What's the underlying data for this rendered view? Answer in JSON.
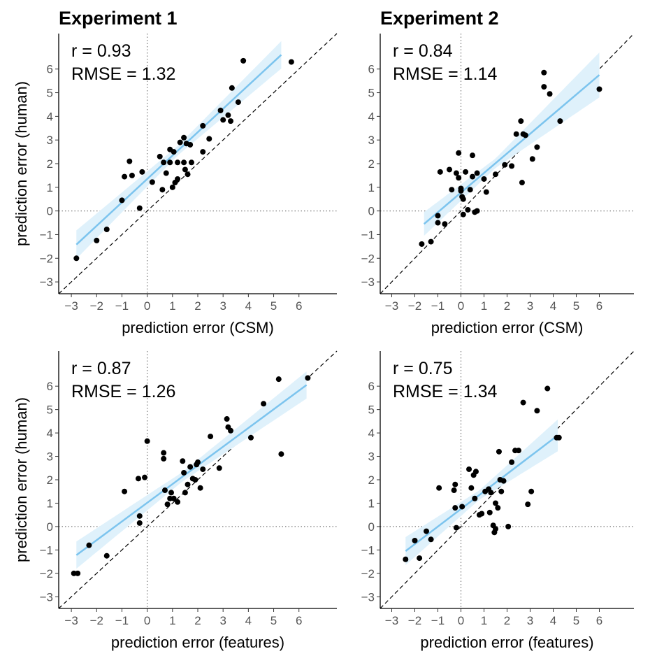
{
  "colors": {
    "fit_line": "#7cc4ee",
    "ci_band": "#dff1fb",
    "point": "#000000",
    "identity_line": "#000000",
    "zero_line": "#7a7a7a"
  },
  "column_titles": [
    "Experiment 1",
    "Experiment 2"
  ],
  "chart_data": [
    {
      "type": "scatter",
      "panel": "top-left",
      "xlabel": "prediction error (CSM)",
      "ylabel": "prediction error (human)",
      "stats": {
        "r": "r = 0.93",
        "rmse": "RMSE = 1.32"
      },
      "xlim": [
        -3.5,
        7.5
      ],
      "ylim": [
        -3.5,
        7.5
      ],
      "xticks": [
        -3,
        -2,
        -1,
        0,
        1,
        2,
        3,
        4,
        5,
        6
      ],
      "yticks": [
        -3,
        -2,
        -1,
        0,
        1,
        2,
        3,
        4,
        5,
        6
      ],
      "fit": {
        "x0": -2.8,
        "y0": -1.42,
        "x1": 5.3,
        "y1": 6.6,
        "ci_x": [
          -2.8,
          1.2,
          5.3
        ],
        "ci_half": [
          0.6,
          0.2,
          0.58
        ]
      },
      "points": [
        [
          -2.8,
          -2.0
        ],
        [
          -2.0,
          -1.25
        ],
        [
          -1.6,
          -0.78
        ],
        [
          -1.0,
          0.45
        ],
        [
          -0.9,
          1.45
        ],
        [
          -0.7,
          2.1
        ],
        [
          -0.6,
          1.5
        ],
        [
          -0.3,
          0.12
        ],
        [
          -0.2,
          1.65
        ],
        [
          0.2,
          1.22
        ],
        [
          0.5,
          2.3
        ],
        [
          0.6,
          0.9
        ],
        [
          0.65,
          2.05
        ],
        [
          0.75,
          1.6
        ],
        [
          0.9,
          2.05
        ],
        [
          0.9,
          2.6
        ],
        [
          1.0,
          1.0
        ],
        [
          1.05,
          2.5
        ],
        [
          1.1,
          1.2
        ],
        [
          1.2,
          1.35
        ],
        [
          1.2,
          2.05
        ],
        [
          1.3,
          2.9
        ],
        [
          1.45,
          2.05
        ],
        [
          1.45,
          3.1
        ],
        [
          1.5,
          1.75
        ],
        [
          1.55,
          2.85
        ],
        [
          1.6,
          1.55
        ],
        [
          1.7,
          2.8
        ],
        [
          1.75,
          2.05
        ],
        [
          2.2,
          3.6
        ],
        [
          2.2,
          2.5
        ],
        [
          2.45,
          3.05
        ],
        [
          2.9,
          4.25
        ],
        [
          3.0,
          3.85
        ],
        [
          3.2,
          4.05
        ],
        [
          3.3,
          3.8
        ],
        [
          3.35,
          5.2
        ],
        [
          3.6,
          4.6
        ],
        [
          3.8,
          6.35
        ],
        [
          5.7,
          6.3
        ]
      ]
    },
    {
      "type": "scatter",
      "panel": "top-right",
      "xlabel": "prediction error (CSM)",
      "ylabel": "",
      "stats": {
        "r": "r = 0.84",
        "rmse": "RMSE = 1.14"
      },
      "xlim": [
        -3.5,
        7.5
      ],
      "ylim": [
        -3.5,
        7.5
      ],
      "xticks": [
        -3,
        -2,
        -1,
        0,
        1,
        2,
        3,
        4,
        5,
        6
      ],
      "yticks": [
        -3,
        -2,
        -1,
        0,
        1,
        2,
        3,
        4,
        5,
        6
      ],
      "fit": {
        "x0": -1.6,
        "y0": -0.55,
        "x1": 6.0,
        "y1": 5.75,
        "ci_x": [
          -1.6,
          1.5,
          6.0
        ],
        "ci_half": [
          0.5,
          0.2,
          0.95
        ]
      },
      "points": [
        [
          -1.7,
          -1.4
        ],
        [
          -1.3,
          -1.3
        ],
        [
          -1.0,
          -0.2
        ],
        [
          -1.0,
          -0.5
        ],
        [
          -0.9,
          1.65
        ],
        [
          -0.7,
          -0.55
        ],
        [
          -0.5,
          1.75
        ],
        [
          -0.4,
          0.9
        ],
        [
          -0.2,
          1.6
        ],
        [
          -0.1,
          2.45
        ],
        [
          -0.1,
          1.4
        ],
        [
          0.0,
          0.95
        ],
        [
          0.0,
          0.85
        ],
        [
          0.05,
          0.6
        ],
        [
          0.1,
          0.5
        ],
        [
          0.1,
          -0.15
        ],
        [
          0.2,
          1.65
        ],
        [
          0.3,
          0.05
        ],
        [
          0.4,
          0.9
        ],
        [
          0.5,
          2.35
        ],
        [
          0.5,
          1.45
        ],
        [
          0.6,
          -0.05
        ],
        [
          0.7,
          0.0
        ],
        [
          0.7,
          1.6
        ],
        [
          1.0,
          1.35
        ],
        [
          1.1,
          0.8
        ],
        [
          1.5,
          1.55
        ],
        [
          1.9,
          1.95
        ],
        [
          2.2,
          1.9
        ],
        [
          2.4,
          3.25
        ],
        [
          2.6,
          3.8
        ],
        [
          2.65,
          1.2
        ],
        [
          2.7,
          3.25
        ],
        [
          2.8,
          3.2
        ],
        [
          3.1,
          2.2
        ],
        [
          3.3,
          2.7
        ],
        [
          3.6,
          5.25
        ],
        [
          3.6,
          5.85
        ],
        [
          3.85,
          4.95
        ],
        [
          4.3,
          3.8
        ],
        [
          6.0,
          5.15
        ]
      ]
    },
    {
      "type": "scatter",
      "panel": "bottom-left",
      "xlabel": "prediction error (features)",
      "ylabel": "prediction error (human)",
      "stats": {
        "r": "r = 0.87",
        "rmse": "RMSE = 1.26"
      },
      "xlim": [
        -3.5,
        7.5
      ],
      "ylim": [
        -3.5,
        7.5
      ],
      "xticks": [
        -3,
        -2,
        -1,
        0,
        1,
        2,
        3,
        4,
        5,
        6
      ],
      "yticks": [
        -3,
        -2,
        -1,
        0,
        1,
        2,
        3,
        4,
        5,
        6
      ],
      "fit": {
        "x0": -2.8,
        "y0": -1.22,
        "x1": 6.3,
        "y1": 6.05,
        "ci_x": [
          -2.8,
          1.4,
          6.3
        ],
        "ci_half": [
          0.58,
          0.2,
          0.58
        ]
      },
      "points": [
        [
          -2.9,
          -2.0
        ],
        [
          -2.75,
          -2.0
        ],
        [
          -2.3,
          -0.8
        ],
        [
          -1.6,
          -1.25
        ],
        [
          -0.9,
          1.5
        ],
        [
          -0.35,
          2.05
        ],
        [
          -0.3,
          0.45
        ],
        [
          -0.3,
          0.15
        ],
        [
          -0.1,
          2.1
        ],
        [
          0.0,
          3.65
        ],
        [
          0.65,
          3.15
        ],
        [
          0.65,
          2.9
        ],
        [
          0.7,
          1.55
        ],
        [
          0.8,
          0.95
        ],
        [
          0.9,
          1.2
        ],
        [
          0.95,
          1.45
        ],
        [
          1.05,
          1.2
        ],
        [
          1.2,
          1.05
        ],
        [
          1.4,
          2.8
        ],
        [
          1.45,
          2.3
        ],
        [
          1.5,
          1.45
        ],
        [
          1.6,
          1.8
        ],
        [
          1.7,
          2.55
        ],
        [
          1.8,
          2.05
        ],
        [
          1.9,
          2.0
        ],
        [
          1.95,
          2.65
        ],
        [
          2.0,
          2.75
        ],
        [
          2.1,
          1.65
        ],
        [
          2.2,
          2.45
        ],
        [
          2.5,
          3.85
        ],
        [
          2.85,
          2.5
        ],
        [
          3.15,
          4.6
        ],
        [
          3.2,
          4.25
        ],
        [
          3.3,
          4.1
        ],
        [
          4.1,
          3.8
        ],
        [
          4.6,
          5.25
        ],
        [
          5.2,
          6.3
        ],
        [
          5.3,
          3.1
        ],
        [
          6.35,
          6.35
        ]
      ]
    },
    {
      "type": "scatter",
      "panel": "bottom-right",
      "xlabel": "prediction error (features)",
      "ylabel": "",
      "stats": {
        "r": "r = 0.75",
        "rmse": "RMSE = 1.34"
      },
      "xlim": [
        -3.5,
        7.5
      ],
      "ylim": [
        -3.5,
        7.5
      ],
      "xticks": [
        -3,
        -2,
        -1,
        0,
        1,
        2,
        3,
        4,
        5,
        6
      ],
      "yticks": [
        -3,
        -2,
        -1,
        0,
        1,
        2,
        3,
        4,
        5,
        6
      ],
      "fit": {
        "x0": -2.4,
        "y0": -1.05,
        "x1": 4.2,
        "y1": 3.9,
        "ci_x": [
          -2.4,
          0.8,
          4.2
        ],
        "ci_half": [
          0.6,
          0.2,
          0.68
        ]
      },
      "points": [
        [
          -2.4,
          -1.4
        ],
        [
          -2.0,
          -0.6
        ],
        [
          -1.8,
          -1.35
        ],
        [
          -1.5,
          -0.2
        ],
        [
          -1.3,
          -0.55
        ],
        [
          -0.95,
          1.65
        ],
        [
          -0.3,
          1.55
        ],
        [
          -0.25,
          1.8
        ],
        [
          -0.25,
          0.8
        ],
        [
          -0.2,
          -0.05
        ],
        [
          0.05,
          0.85
        ],
        [
          0.35,
          2.45
        ],
        [
          0.45,
          1.65
        ],
        [
          0.55,
          2.2
        ],
        [
          0.6,
          1.2
        ],
        [
          0.65,
          2.35
        ],
        [
          0.8,
          0.5
        ],
        [
          0.9,
          0.55
        ],
        [
          1.05,
          1.5
        ],
        [
          1.2,
          1.6
        ],
        [
          1.25,
          0.6
        ],
        [
          1.3,
          1.45
        ],
        [
          1.4,
          0.05
        ],
        [
          1.45,
          -0.25
        ],
        [
          1.5,
          1.0
        ],
        [
          1.5,
          -0.1
        ],
        [
          1.6,
          0.8
        ],
        [
          1.65,
          3.2
        ],
        [
          1.7,
          2.0
        ],
        [
          1.75,
          1.5
        ],
        [
          1.85,
          1.95
        ],
        [
          2.05,
          0.0
        ],
        [
          2.2,
          2.75
        ],
        [
          2.35,
          3.25
        ],
        [
          2.5,
          3.25
        ],
        [
          2.7,
          5.3
        ],
        [
          2.9,
          0.95
        ],
        [
          3.05,
          1.5
        ],
        [
          3.3,
          4.95
        ],
        [
          3.75,
          5.9
        ],
        [
          4.15,
          3.8
        ],
        [
          4.25,
          3.8
        ]
      ]
    }
  ]
}
